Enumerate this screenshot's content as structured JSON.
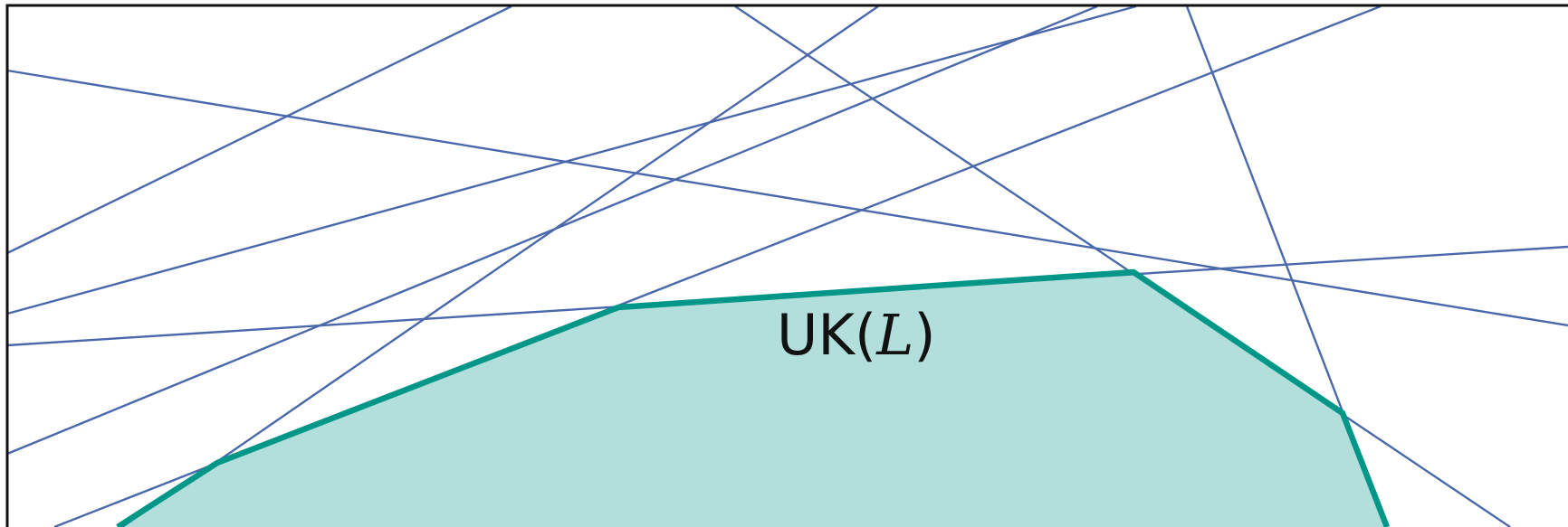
{
  "diagram": {
    "region": {
      "label_prefix": "UK(",
      "label_arg": "L",
      "label_suffix": ")",
      "fill_color": "#b2dfdb",
      "edge_color": "#009688"
    },
    "line_color": "#4a68ac",
    "frame_color": "#111111"
  }
}
